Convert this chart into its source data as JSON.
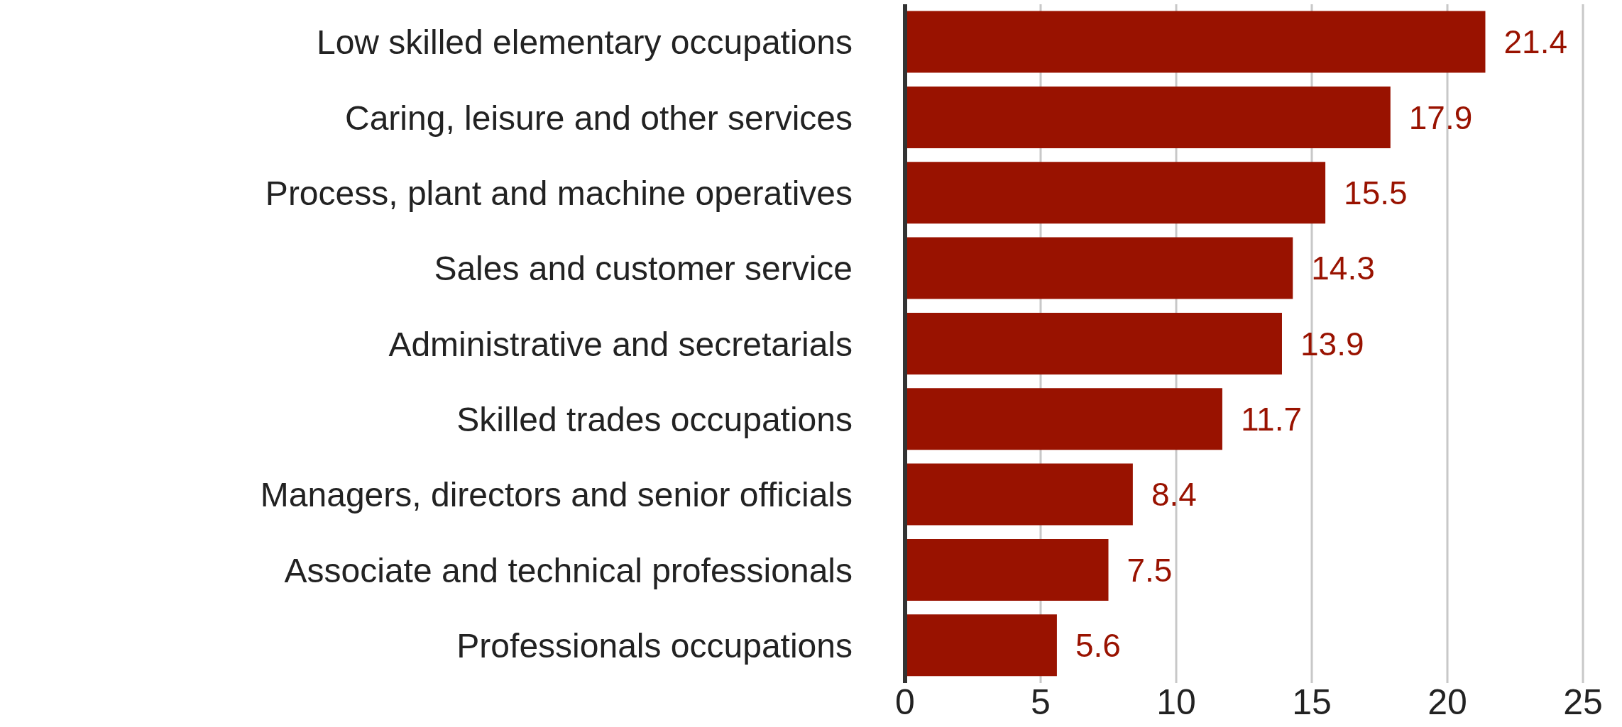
{
  "chart_data": {
    "type": "bar",
    "orientation": "horizontal",
    "categories": [
      "Low skilled elementary occupations",
      "Caring, leisure and other services",
      "Process, plant and machine operatives",
      "Sales and customer service",
      "Administrative and secretarials",
      "Skilled trades occupations",
      "Managers, directors and senior officials",
      "Associate and technical professionals",
      "Professionals occupations"
    ],
    "values": [
      21.4,
      17.9,
      15.5,
      14.3,
      13.9,
      11.7,
      8.4,
      7.5,
      5.6
    ],
    "color": "#991200",
    "xlim": [
      0,
      25
    ],
    "xticks": [
      0,
      5,
      10,
      15,
      20,
      25
    ],
    "grid": "x",
    "data_labels": true
  }
}
